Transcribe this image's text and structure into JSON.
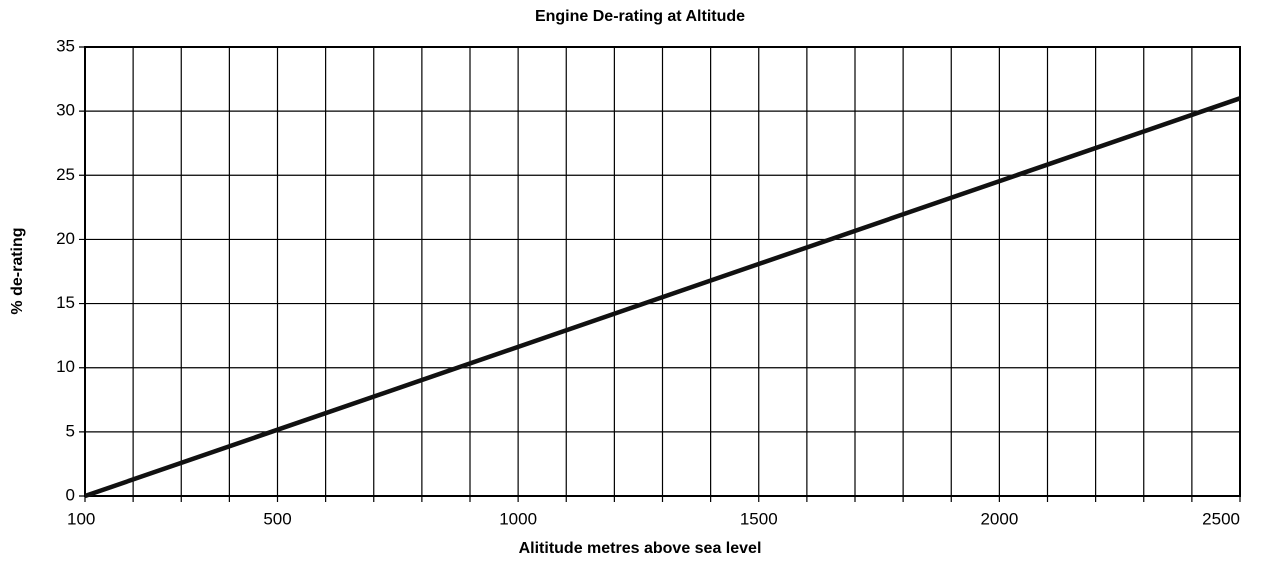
{
  "chart_data": {
    "type": "line",
    "title": "Engine De-rating at Altitude",
    "x_label": "Alititude metres above sea level",
    "y_label": "% de-rating",
    "x": [
      100,
      2500
    ],
    "series": [
      {
        "name": "De-rating",
        "color": "#111111",
        "values": [
          0,
          31
        ]
      }
    ],
    "xlim": [
      100,
      2500
    ],
    "xticks": [
      100,
      500,
      1000,
      1500,
      2000,
      2500
    ],
    "xminor_ticks": [
      200,
      300,
      400,
      600,
      700,
      800,
      900,
      1100,
      1200,
      1300,
      1400,
      1600,
      1700,
      1800,
      1900,
      2100,
      2200,
      2300,
      2400
    ],
    "ylim": [
      0,
      35
    ],
    "yticks": [
      0,
      5,
      10,
      15,
      20,
      25,
      30,
      35
    ],
    "grid": true
  }
}
